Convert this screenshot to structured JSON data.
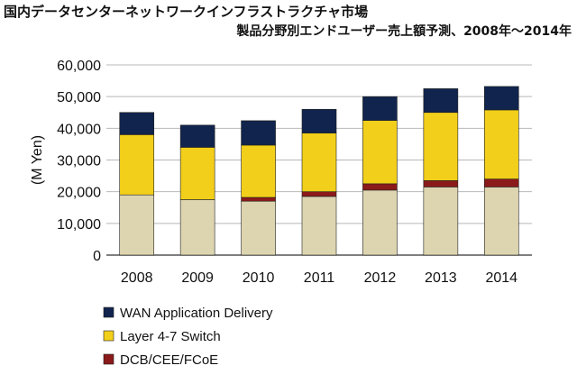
{
  "title": "国内データセンターネットワークインフラストラクチャ市場",
  "subtitle": "製品分野別エンドユーザー売上額予測、2008年～2014年",
  "chart_data": {
    "type": "bar",
    "stacked": true,
    "ylabel": "(M Yen)",
    "ylim": [
      0,
      60000
    ],
    "ytick_labels": [
      "0",
      "10,000",
      "20,000",
      "30,000",
      "40,000",
      "50,000",
      "60,000"
    ],
    "yticks": [
      0,
      10000,
      20000,
      30000,
      40000,
      50000,
      60000
    ],
    "categories": [
      "2008",
      "2009",
      "2010",
      "2011",
      "2012",
      "2013",
      "2014"
    ],
    "legend_position": "bottom",
    "series": [
      {
        "name": "",
        "color": "#ddd5b0",
        "values": [
          19000,
          17500,
          17000,
          18500,
          20500,
          21500,
          21500
        ]
      },
      {
        "name": "DCB/CEE/FCoE",
        "color": "#8b1a1a",
        "values": [
          0,
          0,
          1200,
          1500,
          2000,
          2000,
          2500
        ]
      },
      {
        "name": "Layer 4-7 Switch",
        "color": "#f2cf1a",
        "values": [
          19000,
          16500,
          16500,
          18500,
          20000,
          21500,
          21800
        ]
      },
      {
        "name": "WAN Application Delivery",
        "color": "#10244d",
        "values": [
          7000,
          7000,
          7700,
          7500,
          7500,
          7500,
          7400
        ]
      }
    ],
    "legend": [
      {
        "label": "WAN Application Delivery",
        "color": "#10244d"
      },
      {
        "label": "Layer 4-7 Switch",
        "color": "#f2cf1a"
      },
      {
        "label": "DCB/CEE/FCoE",
        "color": "#8b1a1a"
      }
    ]
  }
}
